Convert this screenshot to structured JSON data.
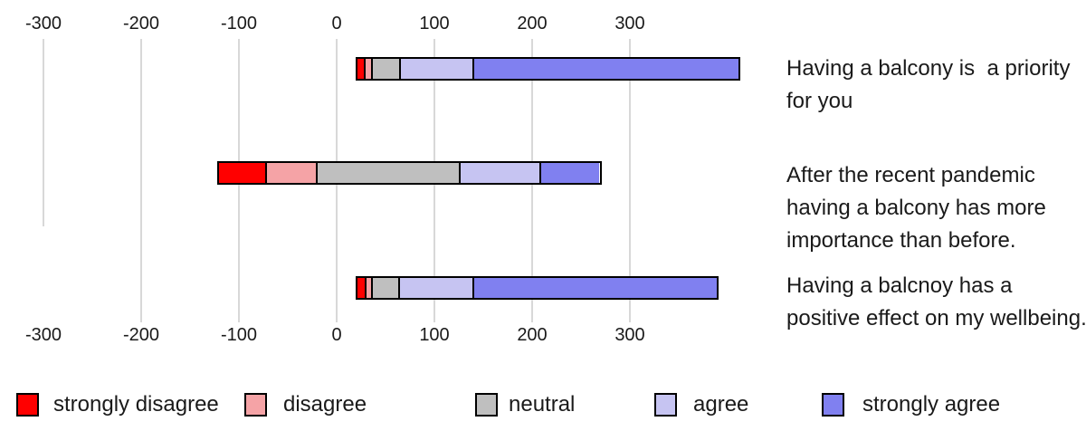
{
  "chart_data": {
    "type": "bar",
    "subtype": "diverging-stacked-horizontal-likert",
    "title": "",
    "xlabel": "",
    "ylabel": "",
    "grid": true,
    "axis": {
      "ticks": [
        -300,
        -200,
        -100,
        0,
        100,
        200,
        300
      ],
      "tick_labels": [
        "-300",
        "-200",
        "-100",
        "0",
        "100",
        "200",
        "300"
      ],
      "shown_on_top": true,
      "shown_on_bottom": true
    },
    "categories": [
      "strongly disagree",
      "disagree",
      "neutral",
      "agree",
      "strongly agree"
    ],
    "colors": {
      "strongly_disagree": "#FF0000",
      "disagree": "#F5A3A6",
      "neutral": "#BFBFBF",
      "agree": "#C6C4F2",
      "strongly_agree": "#8080F0",
      "gridline": "#D8D8D8",
      "bar_border": "#000000",
      "text": "#1A1A1A"
    },
    "rows": [
      {
        "label": "Having a balcony is  a priority for you",
        "start": 21,
        "values": [
          7,
          7,
          29,
          75,
          272
        ]
      },
      {
        "label": "After the recent pandemic having a balcony has more importance than before.",
        "start": -120,
        "values": [
          47,
          52,
          146,
          82,
          62
        ]
      },
      {
        "label": "Having a balcnoy has a positive effect on my wellbeing.",
        "start": 21,
        "values": [
          8,
          6,
          28,
          76,
          250
        ]
      }
    ],
    "legend": {
      "position": "bottom",
      "items": [
        "strongly disagree",
        "disagree",
        "neutral",
        "agree",
        "strongly agree"
      ]
    }
  }
}
